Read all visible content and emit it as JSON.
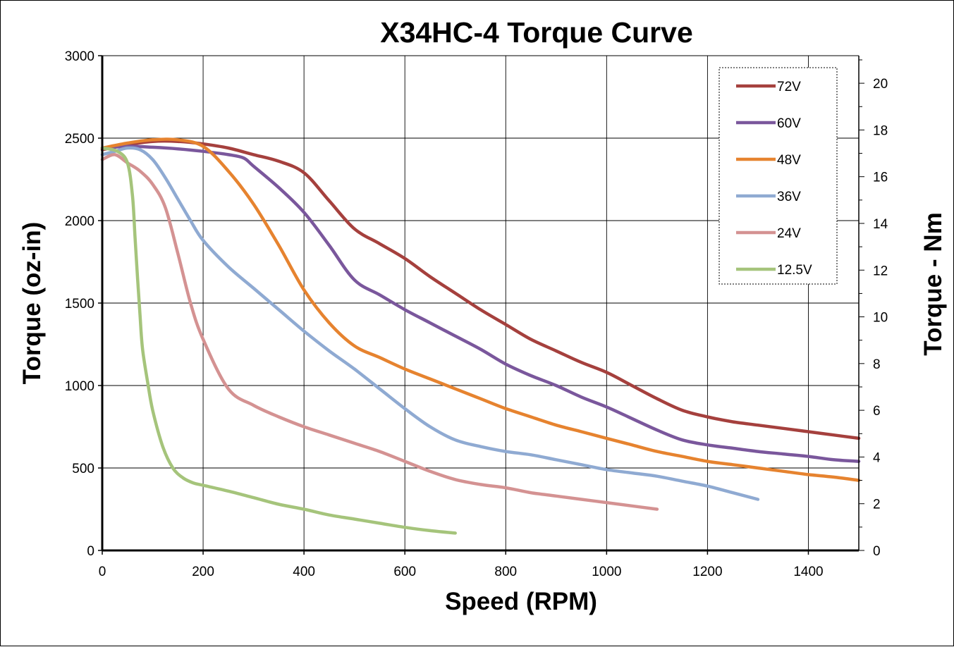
{
  "chart_data": {
    "type": "line",
    "title": "X34HC-4 Torque Curve",
    "xlabel": "Speed (RPM)",
    "ylabel": "Torque (oz-in)",
    "y2label": "Torque - Nm",
    "xlim": [
      0,
      1500
    ],
    "ylim": [
      0,
      3000
    ],
    "y2lim": [
      0,
      21.18
    ],
    "x_ticks": [
      "0",
      "200",
      "400",
      "600",
      "800",
      "1000",
      "1200",
      "1400"
    ],
    "y_ticks": [
      "0",
      "500",
      "1000",
      "1500",
      "2000",
      "2500",
      "3000"
    ],
    "y2_ticks": [
      "0",
      "2",
      "4",
      "6",
      "8",
      "10",
      "12",
      "14",
      "16",
      "18",
      "20"
    ],
    "grid": true,
    "legend": "top-right",
    "series": [
      {
        "name": "72V",
        "color": "#a5403d",
        "x": [
          0,
          50,
          100,
          150,
          200,
          250,
          300,
          350,
          400,
          450,
          500,
          550,
          600,
          650,
          700,
          750,
          800,
          850,
          900,
          950,
          1000,
          1050,
          1100,
          1150,
          1200,
          1250,
          1300,
          1350,
          1400,
          1450,
          1500
        ],
        "y": [
          2430,
          2460,
          2480,
          2480,
          2465,
          2440,
          2400,
          2360,
          2290,
          2120,
          1950,
          1860,
          1770,
          1660,
          1560,
          1460,
          1370,
          1280,
          1210,
          1140,
          1080,
          1000,
          920,
          850,
          810,
          780,
          760,
          740,
          720,
          700,
          680
        ]
      },
      {
        "name": "60V",
        "color": "#7a579c",
        "x": [
          0,
          50,
          100,
          150,
          200,
          250,
          280,
          300,
          350,
          400,
          450,
          500,
          550,
          600,
          650,
          700,
          750,
          800,
          850,
          900,
          950,
          1000,
          1050,
          1100,
          1150,
          1200,
          1250,
          1300,
          1350,
          1400,
          1450,
          1500
        ],
        "y": [
          2440,
          2450,
          2445,
          2435,
          2420,
          2400,
          2380,
          2330,
          2200,
          2050,
          1850,
          1640,
          1550,
          1460,
          1380,
          1300,
          1220,
          1130,
          1060,
          1000,
          930,
          870,
          800,
          730,
          670,
          640,
          620,
          600,
          585,
          570,
          550,
          540
        ]
      },
      {
        "name": "48V",
        "color": "#e6832f",
        "x": [
          0,
          50,
          100,
          150,
          200,
          250,
          300,
          350,
          400,
          450,
          500,
          550,
          600,
          650,
          700,
          750,
          800,
          850,
          900,
          950,
          1000,
          1050,
          1100,
          1150,
          1200,
          1250,
          1300,
          1350,
          1400,
          1450,
          1500
        ],
        "y": [
          2440,
          2470,
          2490,
          2490,
          2450,
          2300,
          2100,
          1850,
          1580,
          1380,
          1240,
          1170,
          1100,
          1040,
          980,
          920,
          860,
          810,
          760,
          720,
          680,
          640,
          600,
          570,
          540,
          520,
          500,
          480,
          460,
          445,
          425
        ]
      },
      {
        "name": "36V",
        "color": "#8faad2",
        "x": [
          0,
          25,
          50,
          75,
          100,
          125,
          150,
          175,
          200,
          250,
          300,
          350,
          400,
          450,
          500,
          550,
          600,
          650,
          700,
          750,
          800,
          850,
          900,
          950,
          1000,
          1050,
          1100,
          1150,
          1200,
          1250,
          1300
        ],
        "y": [
          2400,
          2420,
          2440,
          2430,
          2370,
          2260,
          2130,
          2000,
          1880,
          1720,
          1590,
          1460,
          1330,
          1210,
          1100,
          980,
          860,
          750,
          670,
          630,
          600,
          580,
          550,
          520,
          490,
          470,
          450,
          420,
          390,
          350,
          310
        ]
      },
      {
        "name": "24V",
        "color": "#d49292",
        "x": [
          0,
          25,
          50,
          75,
          100,
          125,
          150,
          175,
          200,
          250,
          300,
          350,
          400,
          450,
          500,
          550,
          600,
          650,
          700,
          750,
          800,
          850,
          900,
          950,
          1000,
          1050,
          1100
        ],
        "y": [
          2370,
          2400,
          2350,
          2300,
          2220,
          2080,
          1800,
          1500,
          1280,
          980,
          880,
          810,
          750,
          700,
          650,
          600,
          540,
          480,
          430,
          400,
          380,
          350,
          330,
          310,
          290,
          270,
          250
        ]
      },
      {
        "name": "12.5V",
        "color": "#a5c47b",
        "x": [
          0,
          30,
          50,
          60,
          65,
          70,
          75,
          80,
          90,
          100,
          120,
          140,
          160,
          180,
          200,
          250,
          300,
          350,
          400,
          450,
          500,
          550,
          600,
          650,
          700
        ],
        "y": [
          2440,
          2420,
          2350,
          2150,
          1900,
          1650,
          1420,
          1220,
          1020,
          850,
          630,
          500,
          440,
          410,
          395,
          360,
          320,
          280,
          250,
          215,
          190,
          165,
          140,
          120,
          105
        ]
      }
    ]
  }
}
